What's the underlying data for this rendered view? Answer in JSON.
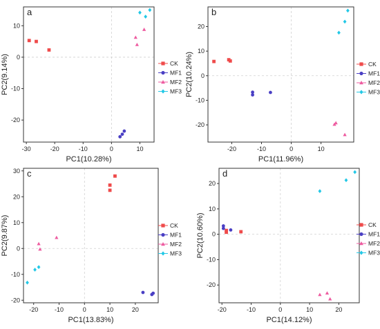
{
  "colors": {
    "CK": "#ef4b4b",
    "MF1": "#4a3fc4",
    "MF2": "#ee5ba0",
    "MF3": "#22c8e6"
  },
  "legend_entries": [
    "CK",
    "MF1",
    "MF2",
    "MF3"
  ],
  "chart_data": [
    {
      "type": "scatter",
      "panel_label": "a",
      "xlabel": "PC1(10.28%)",
      "ylabel": "PC2(9.14%)",
      "xlim": [
        -31,
        15
      ],
      "ylim": [
        -27,
        16
      ],
      "xticks": [
        -30,
        -20,
        -10,
        0,
        10
      ],
      "yticks": [
        -20,
        -10,
        0,
        10
      ],
      "grid": false,
      "zero_lines": true,
      "legend": "right",
      "series": [
        {
          "name": "CK",
          "marker": "square",
          "points": [
            [
              -29,
              5.3
            ],
            [
              -26.5,
              5
            ],
            [
              -22,
              2.3
            ]
          ]
        },
        {
          "name": "MF1",
          "marker": "circle",
          "points": [
            [
              4.5,
              -23.5
            ],
            [
              3.8,
              -24.5
            ],
            [
              3,
              -25.3
            ]
          ]
        },
        {
          "name": "MF2",
          "marker": "triangle",
          "points": [
            [
              11.5,
              8.8
            ],
            [
              8.5,
              6.3
            ],
            [
              9,
              4
            ]
          ]
        },
        {
          "name": "MF3",
          "marker": "diamond",
          "points": [
            [
              10,
              14.2
            ],
            [
              13.5,
              15
            ],
            [
              12,
              12.9
            ]
          ]
        }
      ]
    },
    {
      "type": "scatter",
      "panel_label": "b",
      "xlabel": "PC1(11.96%)",
      "ylabel": "PC2(10.24%)",
      "xlim": [
        -28,
        21
      ],
      "ylim": [
        -27,
        28
      ],
      "xticks": [
        -20,
        -10,
        0,
        10
      ],
      "yticks": [
        -20,
        -10,
        0,
        10,
        20
      ],
      "grid": false,
      "zero_lines": true,
      "legend": "right",
      "series": [
        {
          "name": "CK",
          "marker": "square",
          "points": [
            [
              -26,
              5.8
            ],
            [
              -21,
              6.5
            ],
            [
              -20.5,
              6
            ]
          ]
        },
        {
          "name": "MF1",
          "marker": "circle",
          "points": [
            [
              -13,
              -6.7
            ],
            [
              -13,
              -7.8
            ],
            [
              -7,
              -6.8
            ]
          ]
        },
        {
          "name": "MF2",
          "marker": "triangle",
          "points": [
            [
              15,
              -19.2
            ],
            [
              14.5,
              -19.8
            ],
            [
              18,
              -24
            ]
          ]
        },
        {
          "name": "MF3",
          "marker": "diamond",
          "points": [
            [
              19,
              26.5
            ],
            [
              18,
              22
            ],
            [
              16,
              17.5
            ]
          ]
        }
      ]
    },
    {
      "type": "scatter",
      "panel_label": "c",
      "xlabel": "PC1(13.83%)",
      "ylabel": "PC2(9.87%)",
      "xlim": [
        -24,
        29
      ],
      "ylim": [
        -21,
        31
      ],
      "xticks": [
        -20,
        -10,
        0,
        10,
        20
      ],
      "yticks": [
        -20,
        -10,
        0,
        10,
        20,
        30
      ],
      "grid": false,
      "zero_lines": true,
      "legend": "right",
      "series": [
        {
          "name": "CK",
          "marker": "square",
          "points": [
            [
              12,
              28
            ],
            [
              10,
              24.5
            ],
            [
              10,
              22.5
            ]
          ]
        },
        {
          "name": "MF1",
          "marker": "circle",
          "points": [
            [
              23,
              -17
            ],
            [
              27,
              -17.3
            ],
            [
              26.5,
              -17.8
            ]
          ]
        },
        {
          "name": "MF2",
          "marker": "triangle",
          "points": [
            [
              -18,
              1.8
            ],
            [
              -17.5,
              -0.3
            ],
            [
              -11,
              4.2
            ]
          ]
        },
        {
          "name": "MF3",
          "marker": "diamond",
          "points": [
            [
              -22.5,
              -13.2
            ],
            [
              -19.5,
              -8.2
            ],
            [
              -18,
              -7.2
            ]
          ]
        }
      ]
    },
    {
      "type": "scatter",
      "panel_label": "d",
      "xlabel": "PC1(14.12%)",
      "ylabel": "PC2(10.60%)",
      "xlim": [
        -21,
        27
      ],
      "ylim": [
        -27,
        26
      ],
      "xticks": [
        -20,
        -10,
        0,
        10,
        20
      ],
      "yticks": [
        -20,
        -10,
        0,
        10,
        20
      ],
      "grid": false,
      "zero_lines": true,
      "legend": "right",
      "series": [
        {
          "name": "CK",
          "marker": "square",
          "points": [
            [
              -18.5,
              1.5
            ],
            [
              -18.5,
              0.8
            ],
            [
              -13.5,
              1
            ]
          ]
        },
        {
          "name": "MF1",
          "marker": "circle",
          "points": [
            [
              -19.5,
              3.3
            ],
            [
              -19.5,
              2.3
            ],
            [
              -17,
              1.7
            ]
          ]
        },
        {
          "name": "MF2",
          "marker": "triangle",
          "points": [
            [
              13.5,
              -23.8
            ],
            [
              16,
              -23.2
            ],
            [
              17,
              -25.5
            ]
          ]
        },
        {
          "name": "MF3",
          "marker": "diamond",
          "points": [
            [
              13.5,
              17
            ],
            [
              22.5,
              21.3
            ],
            [
              25.5,
              24.5
            ]
          ]
        }
      ]
    }
  ]
}
